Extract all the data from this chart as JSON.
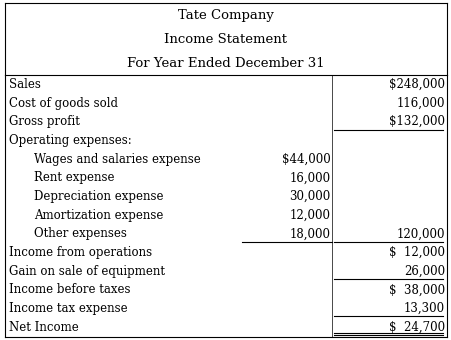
{
  "title_lines": [
    "Tate Company",
    "Income Statement",
    "For Year Ended December 31"
  ],
  "rows": [
    {
      "label": "Sales",
      "indent": 0,
      "col1": "",
      "col2": "$248,000",
      "col1_underline": false,
      "col2_underline": false,
      "col2_dollar": true
    },
    {
      "label": "Cost of goods sold",
      "indent": 0,
      "col1": "",
      "col2": "116,000",
      "col1_underline": false,
      "col2_underline": false,
      "col2_dollar": false
    },
    {
      "label": "Gross profit",
      "indent": 0,
      "col1": "",
      "col2": "$132,000",
      "col1_underline": false,
      "col2_underline": true,
      "col2_dollar": true
    },
    {
      "label": "Operating expenses:",
      "indent": 0,
      "col1": "",
      "col2": "",
      "col1_underline": false,
      "col2_underline": false,
      "col2_dollar": false
    },
    {
      "label": "Wages and salaries expense",
      "indent": 1,
      "col1": "$44,000",
      "col2": "",
      "col1_underline": false,
      "col2_underline": false,
      "col2_dollar": false
    },
    {
      "label": "Rent expense",
      "indent": 1,
      "col1": "16,000",
      "col2": "",
      "col1_underline": false,
      "col2_underline": false,
      "col2_dollar": false
    },
    {
      "label": "Depreciation expense",
      "indent": 1,
      "col1": "30,000",
      "col2": "",
      "col1_underline": false,
      "col2_underline": false,
      "col2_dollar": false
    },
    {
      "label": "Amortization expense",
      "indent": 1,
      "col1": "12,000",
      "col2": "",
      "col1_underline": false,
      "col2_underline": false,
      "col2_dollar": false
    },
    {
      "label": "Other expenses",
      "indent": 1,
      "col1": "18,000",
      "col2": "120,000",
      "col1_underline": true,
      "col2_underline": true,
      "col2_dollar": false
    },
    {
      "label": "Income from operations",
      "indent": 0,
      "col1": "",
      "col2": "$  12,000",
      "col1_underline": false,
      "col2_underline": false,
      "col2_dollar": true
    },
    {
      "label": "Gain on sale of equipment",
      "indent": 0,
      "col1": "",
      "col2": "26,000",
      "col1_underline": false,
      "col2_underline": true,
      "col2_dollar": false
    },
    {
      "label": "Income before taxes",
      "indent": 0,
      "col1": "",
      "col2": "$  38,000",
      "col1_underline": false,
      "col2_underline": false,
      "col2_dollar": true
    },
    {
      "label": "Income tax expense",
      "indent": 0,
      "col1": "",
      "col2": "13,300",
      "col1_underline": false,
      "col2_underline": true,
      "col2_dollar": false
    },
    {
      "label": "Net Income",
      "indent": 0,
      "col1": "",
      "col2": "$  24,700",
      "col1_underline": false,
      "col2_underline": true,
      "col2_dollar": true,
      "double_underline": true
    }
  ],
  "bg_color": "#ffffff",
  "text_color": "#000000",
  "font_size": 8.5,
  "title_font_size": 9.5,
  "figwidth": 4.52,
  "figheight": 3.4,
  "dpi": 100
}
